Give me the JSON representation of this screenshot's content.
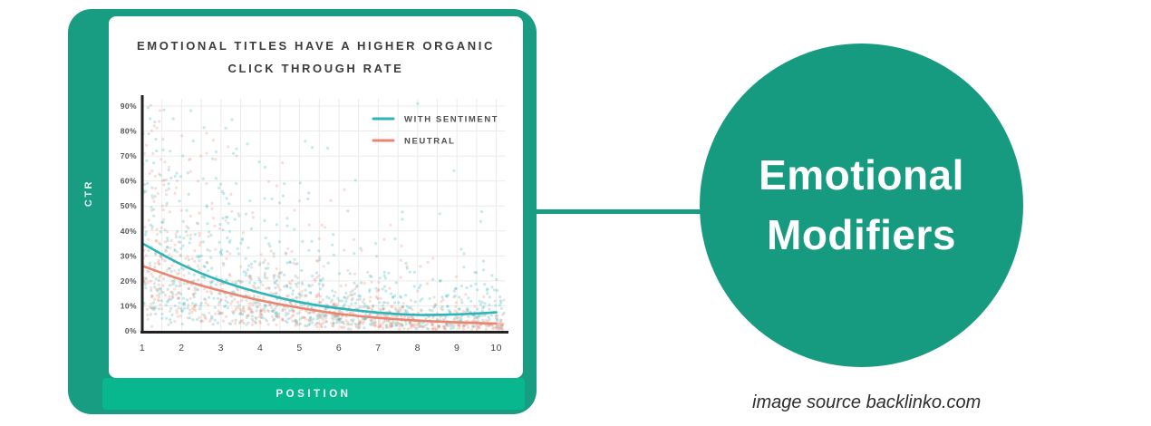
{
  "sticker": {
    "line1": "Emotional",
    "line2": "Modifiers"
  },
  "source": {
    "text": "image source backlinko.com"
  },
  "colors": {
    "frame_green": "#189c82",
    "bar_green": "#09b78e",
    "circle_green": "#179b80",
    "with_sentiment_teal": "#2fb4b7",
    "neutral_salmon": "#ec8570",
    "axis_black": "#222222",
    "grid_gray": "#ebebeb",
    "tick_gray": "#555555"
  },
  "chart_data": {
    "type": "scatter",
    "title": "EMOTIONAL TITLES HAVE A HIGHER ORGANIC CLICK THROUGH RATE",
    "title_lines": [
      "EMOTIONAL TITLES HAVE A HIGHER ORGANIC",
      "CLICK THROUGH RATE"
    ],
    "xlabel": "POSITION",
    "ylabel": "CTR",
    "x": [
      1,
      2,
      3,
      4,
      5,
      6,
      7,
      8,
      9,
      10
    ],
    "xticks": [
      "1",
      "2",
      "3",
      "4",
      "5",
      "6",
      "7",
      "8",
      "9",
      "10"
    ],
    "yticks_percent": [
      0,
      10,
      20,
      30,
      40,
      50,
      60,
      70,
      80,
      90
    ],
    "xlim": [
      1,
      10.2
    ],
    "ylim": [
      0,
      93
    ],
    "grid": true,
    "legend_position": "top-right-inside",
    "series": [
      {
        "name": "WITH SENTIMENT",
        "color": "#2fb4b7",
        "trend_ctr_percent": [
          35,
          26.5,
          20,
          15.2,
          11.5,
          9,
          7.3,
          6.4,
          6.6,
          7.4
        ]
      },
      {
        "name": "NEUTRAL",
        "color": "#ec8570",
        "trend_ctr_percent": [
          26,
          20.5,
          16,
          12.2,
          9.2,
          6.8,
          5.2,
          4.1,
          3.4,
          2.9
        ]
      }
    ],
    "scatter_cloud": {
      "points_per_series": 850,
      "seed": 11,
      "log_spread": 0.85,
      "x_left_bias_exponent": 1.2,
      "dot_radius": 1.6,
      "dot_opacity": 0.28,
      "y_cap_percent": 91
    }
  }
}
